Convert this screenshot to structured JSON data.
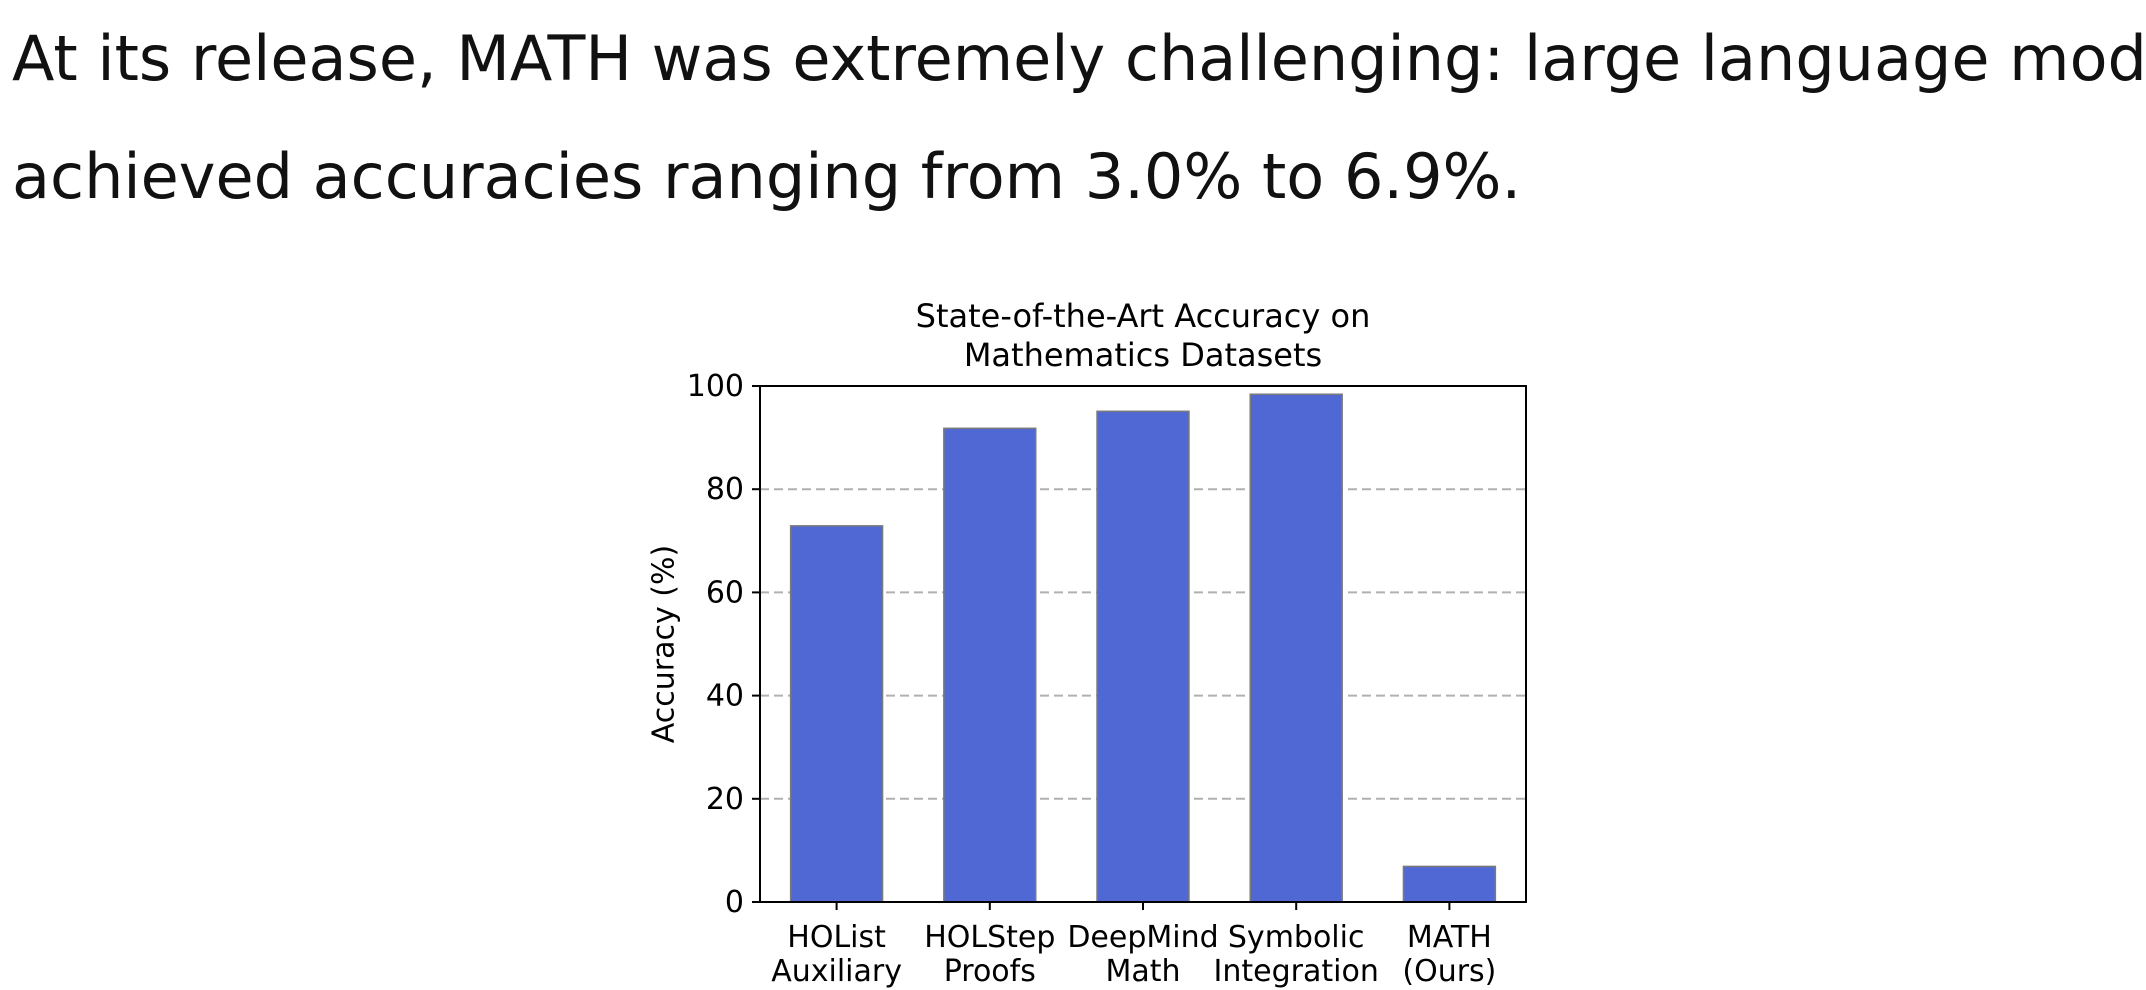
{
  "intro": {
    "line1": "At its release, MATH was extremely challenging: large language models",
    "line2": "achieved accuracies ranging from 3.0% to 6.9%."
  },
  "chart_data": {
    "type": "bar",
    "title_lines": [
      "State-of-the-Art Accuracy on",
      "Mathematics Datasets"
    ],
    "ylabel": "Accuracy (%)",
    "xlabel": "",
    "categories": [
      [
        "HOList",
        "Auxiliary"
      ],
      [
        "HOLStep",
        "Proofs"
      ],
      [
        "DeepMind",
        "Math"
      ],
      [
        "Symbolic",
        "Integration"
      ],
      [
        "MATH",
        "(Ours)"
      ]
    ],
    "values": [
      72.9,
      91.8,
      95.1,
      98.4,
      6.9
    ],
    "ylim": [
      0,
      100
    ],
    "yticks": [
      0,
      20,
      40,
      60,
      80,
      100
    ],
    "grid": "dashed horizontal at y ticks",
    "bar_color": "#5068d4",
    "bar_edge_color": "#7a7a7a"
  }
}
